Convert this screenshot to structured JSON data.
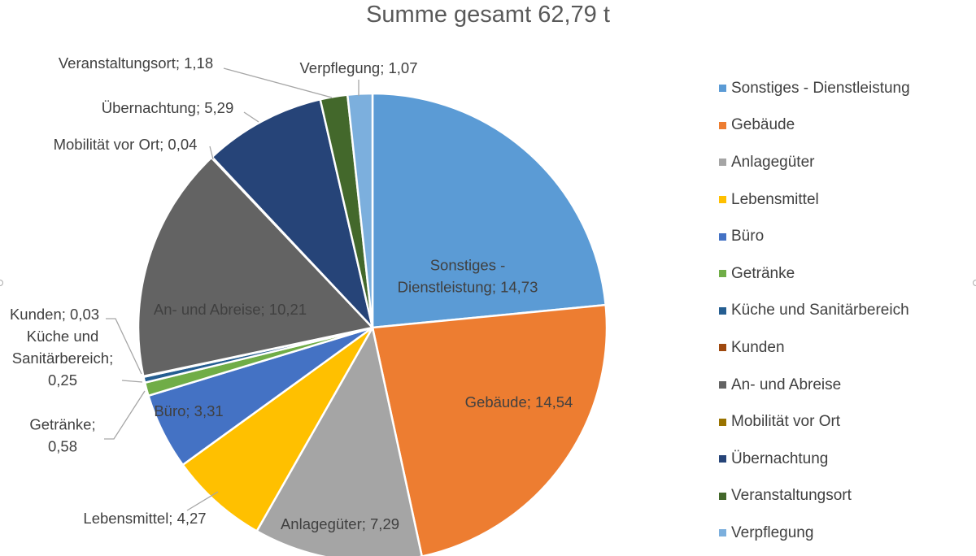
{
  "chart_data": {
    "type": "pie",
    "title": "Summe gesamt 62,79 t",
    "series": [
      {
        "name": "Sonstiges - Dienstleistung",
        "value": 14.73,
        "label": "Sonstiges - Dienstleistung; 14,73",
        "color": "#5B9BD5"
      },
      {
        "name": "Gebäude",
        "value": 14.54,
        "label": "Gebäude; 14,54",
        "color": "#ED7D31"
      },
      {
        "name": "Anlagegüter",
        "value": 7.29,
        "label": "Anlagegüter; 7,29",
        "color": "#A5A5A5"
      },
      {
        "name": "Lebensmittel",
        "value": 4.27,
        "label": "Lebensmittel; 4,27",
        "color": "#FFC000"
      },
      {
        "name": "Büro",
        "value": 3.31,
        "label": "Büro; 3,31",
        "color": "#4472C4"
      },
      {
        "name": "Getränke",
        "value": 0.58,
        "label": "Getränke; 0,58",
        "color": "#70AD47"
      },
      {
        "name": "Küche und Sanitärbereich",
        "value": 0.25,
        "label": "Küche und Sanitärbereich; 0,25",
        "color": "#255E91"
      },
      {
        "name": "Kunden",
        "value": 0.03,
        "label": "Kunden; 0,03",
        "color": "#9E480E"
      },
      {
        "name": "An- und Abreise",
        "value": 10.21,
        "label": "An- und Abreise; 10,21",
        "color": "#636363"
      },
      {
        "name": "Mobilität vor Ort",
        "value": 0.04,
        "label": "Mobilität vor Ort; 0,04",
        "color": "#997300"
      },
      {
        "name": "Übernachtung",
        "value": 5.29,
        "label": "Übernachtung; 5,29",
        "color": "#264478"
      },
      {
        "name": "Veranstaltungsort",
        "value": 1.18,
        "label": "Veranstaltungsort; 1,18",
        "color": "#43682B"
      },
      {
        "name": "Verpflegung",
        "value": 1.07,
        "label": "Verpflegung; 1,07",
        "color": "#7CAFDD"
      }
    ],
    "legend": "right"
  }
}
